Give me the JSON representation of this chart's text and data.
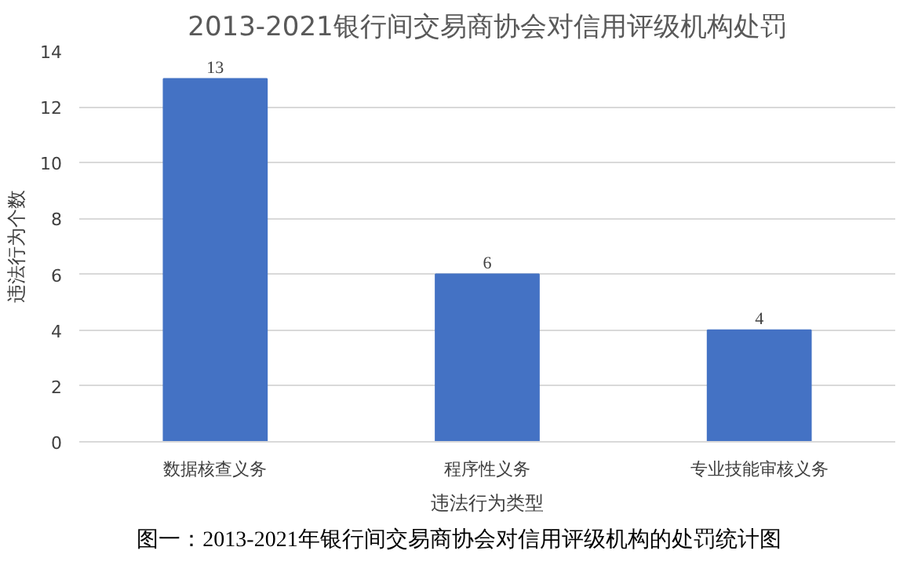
{
  "chart_data": {
    "type": "bar",
    "title": "2013-2021银行间交易商协会对信用评级机构处罚",
    "categories": [
      "数据核查义务",
      "程序性义务",
      "专业技能审核义务"
    ],
    "values": [
      13,
      6,
      4
    ],
    "color": "#4472c4",
    "xlabel": "违法行为类型",
    "ylabel": "违法行为个数",
    "ylim": [
      0,
      14
    ],
    "yticks": [
      0,
      2,
      4,
      6,
      8,
      10,
      12,
      14
    ],
    "grid": "y",
    "data_labels": true,
    "annotations": [
      "图一：2013-2021年银行间交易商协会对信用评级机构的处罚统计图"
    ]
  }
}
